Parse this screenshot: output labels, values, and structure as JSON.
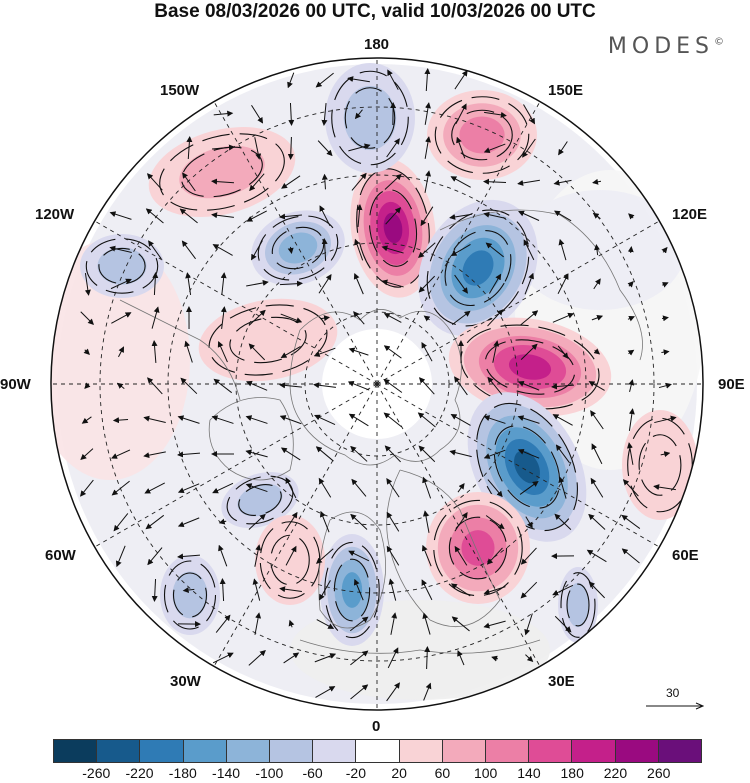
{
  "title": "Base 08/03/2026 00 UTC, valid 10/03/2026 00 UTC",
  "brand": "MODES",
  "brand_mark": "©",
  "longitude_labels": {
    "lon_180": "180",
    "lon_150E": "150E",
    "lon_120E": "120E",
    "lon_90E": "90E",
    "lon_60E": "60E",
    "lon_30E": "30E",
    "lon_0": "0",
    "lon_30W": "30W",
    "lon_60W": "60W",
    "lon_90W": "90W",
    "lon_120W": "120W",
    "lon_150W": "150W"
  },
  "reference_vector": "30",
  "colorbar": {
    "colors": [
      "#0b3c5d",
      "#175a8c",
      "#2f7bb5",
      "#5a9ccb",
      "#8db4d9",
      "#b5c4e2",
      "#d9d9ee",
      "#ffffff",
      "#f9d3d6",
      "#f3aabb",
      "#ec7fa6",
      "#df4c96",
      "#c4208a",
      "#9a0a80",
      "#6a0f7a"
    ],
    "ticks": [
      "-260",
      "-220",
      "-180",
      "-140",
      "-100",
      "-60",
      "-20",
      "20",
      "60",
      "100",
      "140",
      "180",
      "220",
      "260"
    ]
  },
  "anomaly_centers": [
    {
      "name": "north-pacific-positive",
      "value": 240
    },
    {
      "name": "east-siberia-negative",
      "value": -200
    },
    {
      "name": "central-siberia-positive",
      "value": 200
    },
    {
      "name": "west-siberia-negative",
      "value": -260
    },
    {
      "name": "eastern-europe-positive",
      "value": 180
    },
    {
      "name": "western-europe-negative",
      "value": -180
    },
    {
      "name": "gulf-of-alaska-positive",
      "value": 100
    },
    {
      "name": "bering-positive",
      "value": 120
    },
    {
      "name": "aleutian-negative",
      "value": -100
    },
    {
      "name": "canada-west-negative",
      "value": -140
    },
    {
      "name": "alaska-negative",
      "value": -100
    },
    {
      "name": "north-atlantic-negative",
      "value": -100
    },
    {
      "name": "mid-atlantic-positive",
      "value": 60
    },
    {
      "name": "east-atlantic-negative",
      "value": -100
    },
    {
      "name": "central-asia-negative",
      "value": -100
    },
    {
      "name": "far-east-asia-positive",
      "value": 60
    },
    {
      "name": "north-canada-positive",
      "value": 60
    }
  ]
}
